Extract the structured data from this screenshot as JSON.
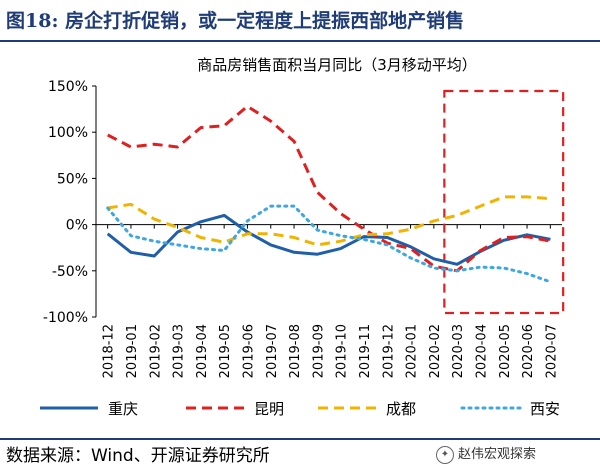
{
  "figure": {
    "label": "图18:",
    "title": "房企打折促销，或一定程度上提振西部地产销售",
    "source": "数据来源：Wind、开源证券研究所",
    "watermark": "赵伟宏观探索"
  },
  "chart_data": {
    "type": "line",
    "title": "商品房销售面积当月同比（3月移动平均）",
    "xlabel": "",
    "ylabel": "",
    "categories": [
      "2018-12",
      "2019-01",
      "2019-02",
      "2019-03",
      "2019-04",
      "2019-05",
      "2019-06",
      "2019-07",
      "2019-08",
      "2019-09",
      "2019-10",
      "2019-11",
      "2019-12",
      "2020-01",
      "2020-02",
      "2020-03",
      "2020-04",
      "2020-05",
      "2020-06",
      "2020-07"
    ],
    "ylim": [
      -100,
      150
    ],
    "yticks": [
      150,
      100,
      50,
      0,
      -50,
      -100
    ],
    "ytick_labels": [
      "150%",
      "100%",
      "50%",
      "0%",
      "-50%",
      "-100%"
    ],
    "grid": false,
    "legend_position": "bottom",
    "highlight": {
      "from": "2020-03",
      "to": "2020-07",
      "color": "#e02020"
    },
    "series": [
      {
        "name": "重庆",
        "style": "solid",
        "color": "#1f5ea8",
        "values": [
          -10,
          -30,
          -34,
          -8,
          3,
          10,
          -8,
          -22,
          -30,
          -32,
          -26,
          -13,
          -14,
          -24,
          -37,
          -43,
          -29,
          -17,
          -11,
          -16
        ]
      },
      {
        "name": "昆明",
        "style": "dashed",
        "color": "#e02020",
        "values": [
          97,
          84,
          87,
          84,
          105,
          107,
          128,
          112,
          90,
          35,
          12,
          -5,
          -20,
          -26,
          -45,
          -50,
          -28,
          -14,
          -13,
          -18
        ]
      },
      {
        "name": "成都",
        "style": "dashed",
        "color": "#f0b400",
        "values": [
          18,
          22,
          6,
          -3,
          -14,
          -19,
          -10,
          -10,
          -14,
          -22,
          -18,
          -11,
          -10,
          -5,
          4,
          10,
          20,
          30,
          30,
          28
        ]
      },
      {
        "name": "西安",
        "style": "dotted",
        "color": "#3ea6e0",
        "values": [
          18,
          -12,
          -18,
          -22,
          -26,
          -28,
          4,
          20,
          20,
          -6,
          -12,
          -16,
          -22,
          -36,
          -47,
          -50,
          -46,
          -47,
          -53,
          -62
        ]
      }
    ]
  }
}
